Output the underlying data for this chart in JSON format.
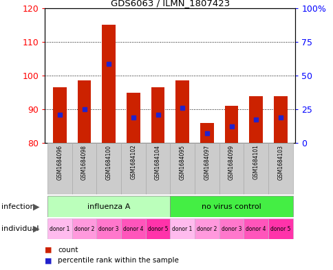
{
  "title": "GDS6063 / ILMN_1807423",
  "samples": [
    "GSM1684096",
    "GSM1684098",
    "GSM1684100",
    "GSM1684102",
    "GSM1684104",
    "GSM1684095",
    "GSM1684097",
    "GSM1684099",
    "GSM1684101",
    "GSM1684103"
  ],
  "bar_bottoms": [
    80,
    80,
    80,
    80,
    80,
    80,
    80,
    80,
    80,
    80
  ],
  "bar_tops": [
    96.5,
    98.5,
    115,
    95,
    96.5,
    98.5,
    86,
    91,
    94,
    94
  ],
  "blue_positions": [
    88.5,
    90,
    103.5,
    87.5,
    88.5,
    90.5,
    83,
    85,
    87,
    87.5
  ],
  "ylim_left": [
    80,
    120
  ],
  "ylim_right": [
    0,
    100
  ],
  "yticks_left": [
    80,
    90,
    100,
    110,
    120
  ],
  "yticks_right": [
    0,
    25,
    50,
    75,
    100
  ],
  "ytick_labels_right": [
    "0",
    "25",
    "50",
    "75",
    "100%"
  ],
  "infection_groups": [
    {
      "label": "influenza A",
      "start": 0,
      "end": 5,
      "color": "#bbffbb"
    },
    {
      "label": "no virus control",
      "start": 5,
      "end": 10,
      "color": "#44ee44"
    }
  ],
  "donors": [
    "donor 1",
    "donor 2",
    "donor 3",
    "donor 4",
    "donor 5",
    "donor 1",
    "donor 2",
    "donor 3",
    "donor 4",
    "donor 5"
  ],
  "donor_colors": [
    "#ffaaee",
    "#ff99ee",
    "#ff77dd",
    "#ff55cc",
    "#ff33bb",
    "#ffaaee",
    "#ff99ee",
    "#ff77dd",
    "#ff55cc",
    "#ff33bb"
  ],
  "bar_color": "#cc2200",
  "blue_color": "#2222cc",
  "background_color": "#ffffff",
  "sample_box_color": "#cccccc",
  "bar_width": 0.55,
  "infection_label": "infection",
  "individual_label": "individual"
}
